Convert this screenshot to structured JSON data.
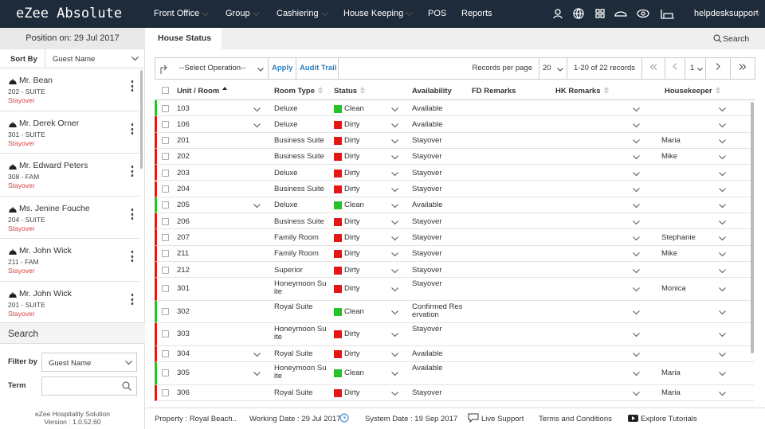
{
  "header": {
    "logo": "eZee Absolute",
    "menu": [
      "Front Office",
      "Group",
      "Cashiering",
      "House Keeping",
      "POS",
      "Reports"
    ],
    "user": "helpdesksupport"
  },
  "sidebar": {
    "position": "Position on: 29 Jul 2017",
    "sort_label": "Sort By",
    "sort_value": "Guest Name",
    "guests": [
      {
        "name": "Mr. Bean",
        "room": "202 - SUITE",
        "status": "Stayover"
      },
      {
        "name": "Mr. Derek Orner",
        "room": "301 - SUITE",
        "status": "Stayover"
      },
      {
        "name": "Mr. Edward Peters",
        "room": "308 - FAM",
        "status": "Stayover"
      },
      {
        "name": "Ms. Jenine Fouche",
        "room": "204 - SUITE",
        "status": "Stayover"
      },
      {
        "name": "Mr. John Wick",
        "room": "211 - FAM",
        "status": "Stayover"
      },
      {
        "name": "Mr. John Wick",
        "room": "201 - SUITE",
        "status": "Stayover"
      }
    ],
    "search": {
      "title": "Search",
      "filter_label": "Filter by",
      "filter_value": "Guest Name",
      "term_label": "Term"
    },
    "footer": [
      "eZee Hospitality Solution",
      "Version : 1.0.52.60"
    ]
  },
  "main": {
    "tab": "House Status",
    "search": "Search",
    "toolbar": {
      "operation": "--Select Operation--",
      "apply": "Apply",
      "audit": "Audit Trail",
      "per_page_label": "Records per page",
      "per_page": "20",
      "records": "1-20 of 22 records",
      "page": "1"
    },
    "table": {
      "headers": [
        "Unit / Room",
        "Room Type",
        "Status",
        "Availability",
        "FD Remarks",
        "HK Remarks",
        "Housekeeper"
      ],
      "rows": [
        {
          "unit": "103",
          "menu": true,
          "type": "Deluxe",
          "status": "Clean",
          "status_color": "#27c227",
          "availability": "Available"
        },
        {
          "unit": "106",
          "menu": true,
          "type": "Deluxe",
          "status": "Dirty",
          "status_color": "#e51616",
          "availability": "Available"
        },
        {
          "unit": "201",
          "type": "Business Suite",
          "status": "Dirty",
          "status_color": "#e51616",
          "availability": "Stayover",
          "housekeeper": "Maria"
        },
        {
          "unit": "202",
          "type": "Business Suite",
          "status": "Dirty",
          "status_color": "#e51616",
          "availability": "Stayover",
          "housekeeper": "Mike"
        },
        {
          "unit": "203",
          "type": "Deluxe",
          "status": "Dirty",
          "status_color": "#e51616",
          "availability": "Stayover"
        },
        {
          "unit": "204",
          "type": "Business Suite",
          "status": "Dirty",
          "status_color": "#e51616",
          "availability": "Stayover"
        },
        {
          "unit": "205",
          "menu": true,
          "type": "Deluxe",
          "status": "Clean",
          "status_color": "#27c227",
          "availability": "Available"
        },
        {
          "unit": "206",
          "type": "Business Suite",
          "status": "Dirty",
          "status_color": "#e51616",
          "availability": "Stayover"
        },
        {
          "unit": "207",
          "type": "Family Room",
          "status": "Dirty",
          "status_color": "#e51616",
          "availability": "Stayover",
          "housekeeper": "Stephanie"
        },
        {
          "unit": "211",
          "type": "Family Room",
          "status": "Dirty",
          "status_color": "#e51616",
          "availability": "Stayover",
          "housekeeper": "Mike"
        },
        {
          "unit": "212",
          "type": "Superior",
          "status": "Dirty",
          "status_color": "#e51616",
          "availability": "Stayover"
        },
        {
          "unit": "301",
          "type": "Honeymoon Suite",
          "status": "Dirty",
          "status_color": "#e51616",
          "availability": "Stayover",
          "housekeeper": "Monica"
        },
        {
          "unit": "302",
          "type": "Royal Suite",
          "status": "Clean",
          "status_color": "#27c227",
          "availability": "Confirmed Reservation"
        },
        {
          "unit": "303",
          "type": "Honeymoon Suite",
          "status": "Dirty",
          "status_color": "#e51616",
          "availability": "Stayover"
        },
        {
          "unit": "304",
          "menu": true,
          "type": "Royal Suite",
          "status": "Dirty",
          "status_color": "#e51616",
          "availability": "Available"
        },
        {
          "unit": "305",
          "menu": true,
          "type": "Honeymoon Suite",
          "status": "Clean",
          "status_color": "#27c227",
          "availability": "Available",
          "housekeeper": "Maria"
        },
        {
          "unit": "306",
          "type": "Royal Suite",
          "status": "Dirty",
          "status_color": "#e51616",
          "availability": "Stayover",
          "housekeeper": "Maria"
        }
      ]
    }
  },
  "status_bar": {
    "property": "Property : Royal Beach..",
    "working": "Working Date : 29 Jul 2017",
    "system": "System Date : 19 Sep 2017",
    "support": "Live Support",
    "terms": "Terms and Conditions",
    "tutorials": "Explore Tutorials"
  }
}
